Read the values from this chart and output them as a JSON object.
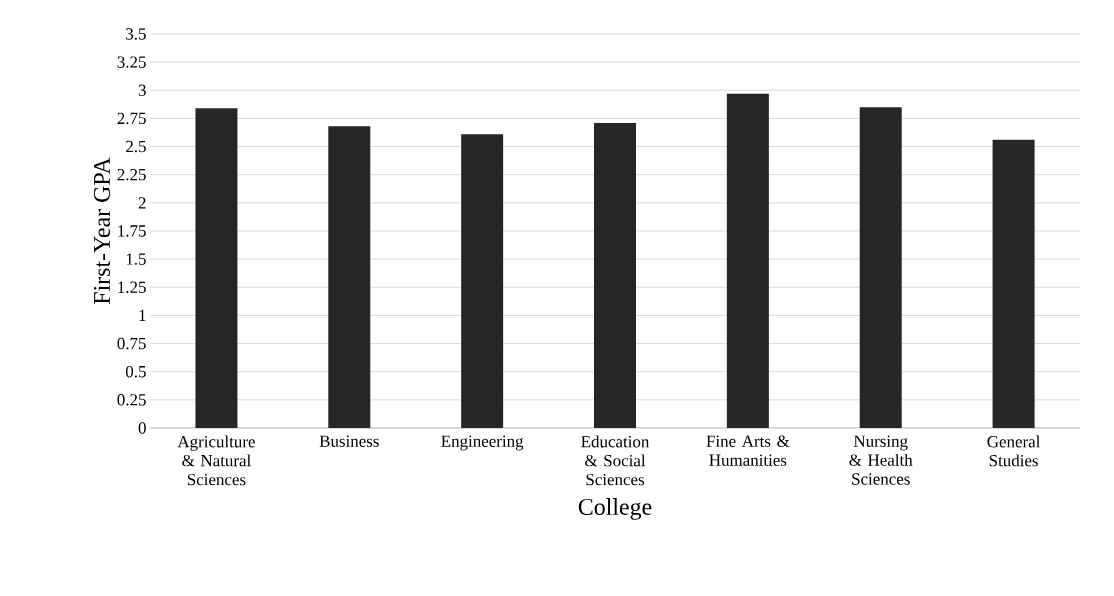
{
  "chart_data": {
    "type": "bar",
    "xlabel": "College",
    "ylabel": "First-Year GPA",
    "categories": [
      "Agriculture & Natural Sciences",
      "Business",
      "Engineering",
      "Education & Social Sciences",
      "Fine Arts & Humanities",
      "Nursing & Health Sciences",
      "General Studies"
    ],
    "values": [
      2.84,
      2.68,
      2.61,
      2.71,
      2.97,
      2.85,
      2.56
    ],
    "color": "#262626",
    "ylim": [
      0,
      3.5
    ],
    "yticks": [
      0,
      0.25,
      0.5,
      0.75,
      1,
      1.25,
      1.5,
      1.75,
      2,
      2.25,
      2.5,
      2.75,
      3,
      3.25,
      3.5
    ],
    "grid": "y"
  }
}
